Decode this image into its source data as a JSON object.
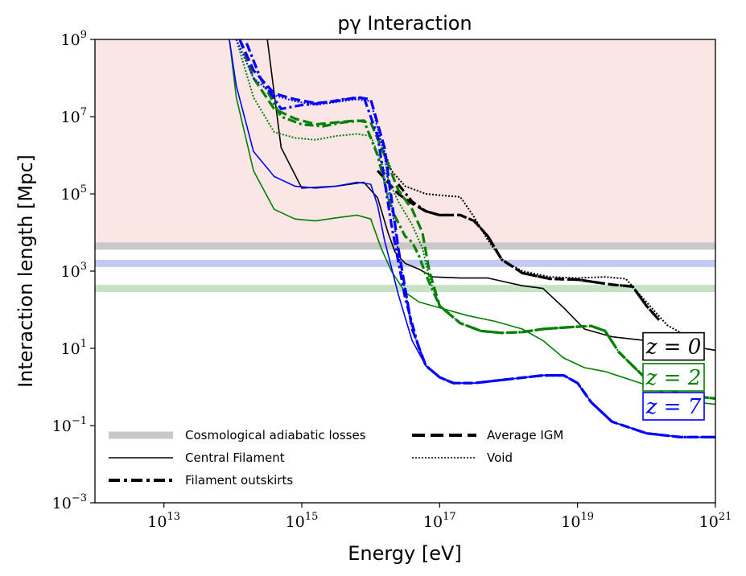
{
  "chart_data": {
    "type": "line",
    "title": "pγ Interaction",
    "xlabel": "Energy [eV]",
    "ylabel": "Interaction length [Mpc]",
    "xscale": "log",
    "yscale": "log",
    "xlim_log10": [
      12,
      21
    ],
    "ylim_log10": [
      -3,
      9
    ],
    "x_ticks": [
      {
        "base": "10",
        "exp": "13",
        "value_log10": 13
      },
      {
        "base": "10",
        "exp": "15",
        "value_log10": 15
      },
      {
        "base": "10",
        "exp": "17",
        "value_log10": 17
      },
      {
        "base": "10",
        "exp": "19",
        "value_log10": 19
      },
      {
        "base": "10",
        "exp": "21",
        "value_log10": 21
      }
    ],
    "y_ticks": [
      {
        "base": "10",
        "exp": "9",
        "value_log10": 9
      },
      {
        "base": "10",
        "exp": "7",
        "value_log10": 7
      },
      {
        "base": "10",
        "exp": "5",
        "value_log10": 5
      },
      {
        "base": "10",
        "exp": "3",
        "value_log10": 3
      },
      {
        "base": "10",
        "exp": "1",
        "value_log10": 1
      },
      {
        "base": "10",
        "exp": "−1",
        "value_log10": -1
      },
      {
        "base": "10",
        "exp": "−3",
        "value_log10": -3
      }
    ],
    "shaded_region": {
      "ymin_log10": 3.7,
      "ymax_log10": 9,
      "color": "#fbe6e6"
    },
    "adiabatic_losses": [
      {
        "z": "0",
        "value_log10": 3.65,
        "color": "#c8c8c8"
      },
      {
        "z": "7",
        "value_log10": 3.2,
        "color": "#c4c8f6"
      },
      {
        "z": "2",
        "value_log10": 2.55,
        "color": "#c6e3c6"
      }
    ],
    "redshift_labels": [
      {
        "text": "z = 0",
        "color": "#000000",
        "y_log10": 1.05
      },
      {
        "text": "z = 2",
        "color": "#008000",
        "y_log10": 0.25
      },
      {
        "text": "z = 7",
        "color": "#0000ff",
        "y_log10": -0.5
      }
    ],
    "legend": [
      {
        "label": "Cosmological adiabatic losses",
        "style": "band",
        "column": 0
      },
      {
        "label": "Central Filament",
        "style": "solid",
        "column": 0
      },
      {
        "label": "Filament outskirts",
        "style": "dashdot",
        "column": 0
      },
      {
        "label": "Average IGM",
        "style": "dashed",
        "column": 1
      },
      {
        "label": "Void",
        "style": "dotted",
        "column": 1
      }
    ],
    "series": [
      {
        "z": "0",
        "env": "Central Filament",
        "color": "#000000",
        "style": "solid",
        "width": 1.6,
        "x": [
          14.5,
          14.7,
          15.0,
          15.5,
          15.9,
          16.1,
          16.25,
          16.35,
          16.5,
          16.7,
          16.9,
          17.3,
          17.7,
          18.2,
          18.5,
          18.8,
          19.1,
          19.5,
          20.0,
          20.5,
          21.0
        ],
        "y": [
          9.0,
          6.2,
          5.15,
          5.2,
          5.3,
          4.9,
          4.0,
          3.5,
          3.2,
          3.05,
          2.85,
          2.82,
          2.82,
          2.62,
          2.55,
          2.05,
          1.5,
          1.3,
          1.2,
          1.1,
          0.95
        ]
      },
      {
        "z": "0",
        "env": "Filament outskirts",
        "color": "#000000",
        "style": "dashdot",
        "width": 3.2,
        "x": [
          16.4,
          16.6,
          16.8,
          17.0,
          17.3,
          17.5,
          17.7,
          17.9,
          18.2,
          18.6,
          19.0,
          19.5,
          19.8,
          20.0,
          20.2
        ],
        "y": [
          5.25,
          4.8,
          4.55,
          4.45,
          4.45,
          4.3,
          3.9,
          3.3,
          2.95,
          2.8,
          2.78,
          2.65,
          2.6,
          2.1,
          1.7
        ]
      },
      {
        "z": "0",
        "env": "Average IGM",
        "color": "#000000",
        "style": "dashed",
        "width": 3.2,
        "x": [
          16.1,
          16.4,
          16.6,
          16.8,
          17.0,
          17.3,
          17.5,
          17.7,
          17.9,
          18.2,
          18.6,
          19.0,
          19.5,
          19.8,
          20.0,
          20.2
        ],
        "y": [
          5.6,
          5.0,
          4.75,
          4.55,
          4.45,
          4.45,
          4.3,
          3.9,
          3.3,
          2.95,
          2.8,
          2.78,
          2.65,
          2.6,
          2.1,
          1.7
        ]
      },
      {
        "z": "0",
        "env": "Void",
        "color": "#000000",
        "style": "dotted",
        "width": 2,
        "x": [
          16.1,
          16.3,
          16.5,
          16.8,
          17.1,
          17.3,
          17.5,
          17.7,
          17.9,
          18.2,
          18.6,
          19.0,
          19.4,
          19.7,
          20.0,
          20.3,
          20.5
        ],
        "y": [
          6.6,
          5.6,
          5.2,
          5.0,
          4.95,
          4.92,
          4.4,
          3.8,
          3.3,
          3.0,
          2.85,
          2.82,
          2.85,
          2.8,
          2.2,
          1.6,
          1.4
        ]
      },
      {
        "z": "2",
        "env": "Central Filament",
        "color": "#008000",
        "style": "solid",
        "width": 1.6,
        "x": [
          13.95,
          14.05,
          14.3,
          14.6,
          14.9,
          15.2,
          15.5,
          15.8,
          16.0,
          16.15,
          16.3,
          16.5,
          16.7,
          17.0,
          17.4,
          17.8,
          18.2,
          18.5,
          18.8,
          19.1,
          19.4,
          20.0,
          20.5,
          21.0
        ],
        "y": [
          9.0,
          7.5,
          5.6,
          4.6,
          4.35,
          4.3,
          4.38,
          4.45,
          4.35,
          3.6,
          3.0,
          2.45,
          2.2,
          2.05,
          1.85,
          1.7,
          1.5,
          1.2,
          0.75,
          0.5,
          0.4,
          0.05,
          -0.35,
          -0.45
        ]
      },
      {
        "z": "2",
        "env": "Filament outskirts",
        "color": "#008000",
        "style": "dashdot",
        "width": 3.2,
        "x": [
          14.2,
          14.4,
          14.7,
          15.0,
          15.3,
          15.6,
          15.9,
          16.1,
          16.3,
          16.5,
          16.6,
          16.7,
          16.8,
          17.0,
          17.3,
          17.6,
          17.9,
          18.2,
          18.5,
          18.9,
          19.2,
          19.4,
          19.6,
          20.0,
          20.5,
          21.0
        ],
        "y": [
          8.9,
          8.0,
          7.0,
          6.8,
          6.75,
          6.85,
          6.9,
          6.0,
          4.6,
          3.9,
          3.75,
          3.4,
          2.9,
          2.1,
          1.65,
          1.45,
          1.4,
          1.42,
          1.5,
          1.55,
          1.58,
          1.45,
          0.9,
          0.2,
          -0.2,
          -0.3
        ]
      },
      {
        "z": "2",
        "env": "Average IGM",
        "color": "#008000",
        "style": "dashed",
        "width": 3.2,
        "x": [
          14.1,
          14.3,
          14.6,
          14.9,
          15.2,
          15.5,
          15.8,
          16.0,
          16.2,
          16.4,
          16.6,
          16.75,
          16.85,
          17.0,
          17.3,
          17.6,
          17.9,
          18.2,
          18.5,
          18.9,
          19.2,
          19.4,
          19.6,
          20.0,
          20.5,
          21.0
        ],
        "y": [
          9.0,
          8.0,
          7.2,
          6.95,
          6.8,
          6.85,
          6.9,
          6.85,
          6.0,
          5.1,
          4.6,
          4.0,
          3.0,
          2.1,
          1.65,
          1.45,
          1.4,
          1.42,
          1.5,
          1.55,
          1.58,
          1.45,
          0.9,
          0.2,
          -0.2,
          -0.3
        ]
      },
      {
        "z": "2",
        "env": "Void",
        "color": "#008000",
        "style": "dotted",
        "width": 2,
        "x": [
          14.05,
          14.3,
          14.6,
          14.9,
          15.2,
          15.5,
          15.8,
          16.0,
          16.2,
          16.4,
          16.6,
          16.75,
          16.85,
          17.0,
          17.3,
          17.6,
          17.9,
          18.2,
          18.5,
          18.9,
          19.2,
          19.4,
          19.6,
          20.0,
          20.5,
          21.0
        ],
        "y": [
          9.0,
          7.5,
          6.6,
          6.45,
          6.4,
          6.5,
          6.55,
          6.5,
          5.6,
          4.8,
          4.2,
          3.6,
          2.8,
          2.1,
          1.65,
          1.45,
          1.4,
          1.42,
          1.5,
          1.55,
          1.58,
          1.45,
          0.9,
          0.2,
          -0.2,
          -0.3
        ]
      },
      {
        "z": "7",
        "env": "Central Filament",
        "color": "#0000ff",
        "style": "solid",
        "width": 1.6,
        "x": [
          13.95,
          14.05,
          14.3,
          14.6,
          14.9,
          15.2,
          15.5,
          15.8,
          16.0,
          16.1,
          16.2,
          16.4,
          16.6,
          16.8,
          17.0,
          17.2,
          17.5,
          18.0,
          18.5,
          18.8,
          19.0,
          19.2,
          19.5,
          20.0,
          20.5,
          21.0
        ],
        "y": [
          9.0,
          7.8,
          6.1,
          5.45,
          5.2,
          5.15,
          5.2,
          5.3,
          5.25,
          4.7,
          3.8,
          2.4,
          1.2,
          0.55,
          0.25,
          0.1,
          0.1,
          0.2,
          0.3,
          0.3,
          0.1,
          -0.4,
          -0.9,
          -1.2,
          -1.3,
          -1.3
        ]
      },
      {
        "z": "7",
        "env": "Filament outskirts",
        "color": "#0000ff",
        "style": "dashdot",
        "width": 3.2,
        "x": [
          14.2,
          14.4,
          14.7,
          15.0,
          15.3,
          15.6,
          15.9,
          16.1,
          16.3,
          16.5,
          16.7,
          16.8,
          17.0,
          17.2,
          17.5,
          18.0,
          18.5,
          18.8,
          19.0,
          19.2,
          19.5,
          20.0,
          20.5,
          21.0
        ],
        "y": [
          8.9,
          8.0,
          7.2,
          7.3,
          7.35,
          7.45,
          7.5,
          6.5,
          4.2,
          2.3,
          1.0,
          0.55,
          0.25,
          0.1,
          0.1,
          0.2,
          0.3,
          0.3,
          0.1,
          -0.4,
          -0.9,
          -1.2,
          -1.3,
          -1.3
        ]
      },
      {
        "z": "7",
        "env": "Average IGM",
        "color": "#0000ff",
        "style": "dashed",
        "width": 3.2,
        "x": [
          14.1,
          14.3,
          14.6,
          14.9,
          15.2,
          15.5,
          15.8,
          16.0,
          16.2,
          16.4,
          16.6,
          16.8,
          17.0,
          17.2,
          17.5,
          18.0,
          18.5,
          18.8,
          19.0,
          19.2,
          19.5,
          20.0,
          20.5,
          21.0
        ],
        "y": [
          9.0,
          8.2,
          7.6,
          7.45,
          7.35,
          7.4,
          7.5,
          7.45,
          6.2,
          3.6,
          1.5,
          0.55,
          0.25,
          0.1,
          0.1,
          0.2,
          0.3,
          0.3,
          0.1,
          -0.4,
          -0.9,
          -1.2,
          -1.3,
          -1.3
        ]
      },
      {
        "z": "7",
        "env": "Void",
        "color": "#0000ff",
        "style": "dotted",
        "width": 2,
        "x": [
          14.05,
          14.3,
          14.6,
          14.9,
          15.2,
          15.5,
          15.8,
          16.0,
          16.2,
          16.4,
          16.6,
          16.8,
          17.0,
          17.2,
          17.5,
          18.0,
          18.5,
          18.8,
          19.0,
          19.2,
          19.5,
          20.0,
          20.5,
          21.0
        ],
        "y": [
          9.0,
          8.0,
          7.55,
          7.4,
          7.3,
          7.38,
          7.45,
          7.4,
          6.0,
          3.5,
          1.5,
          0.55,
          0.25,
          0.1,
          0.1,
          0.2,
          0.3,
          0.3,
          0.1,
          -0.4,
          -0.9,
          -1.2,
          -1.3,
          -1.3
        ]
      }
    ]
  }
}
